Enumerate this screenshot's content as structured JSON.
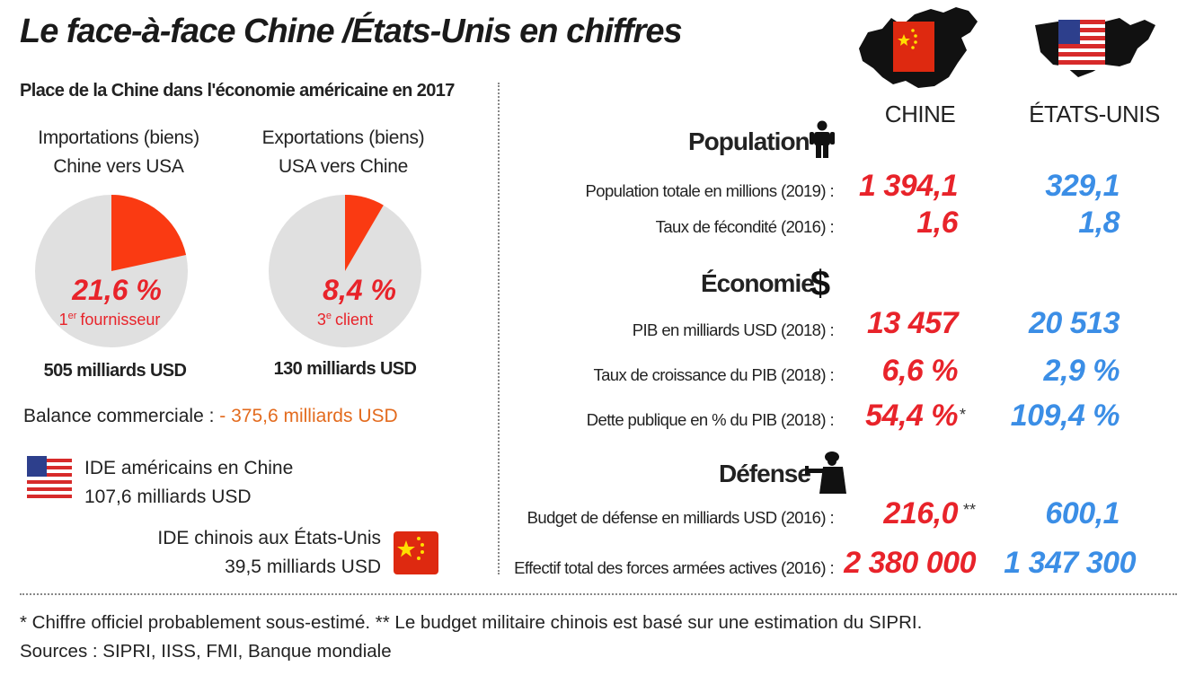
{
  "title": "Le face-à-face Chine /États-Unis en chiffres",
  "left": {
    "subtitle": "Place de la Chine dans l'économie américaine en 2017",
    "import_head_1": "Importations (biens)",
    "import_head_2": "Chine vers USA",
    "export_head_1": "Exportations (biens)",
    "export_head_2": "USA vers Chine",
    "import_pct": "21,6 %",
    "import_rank_num": "1",
    "import_rank_sup": "er",
    "import_rank_text": "fournisseur",
    "export_pct": "8,4 %",
    "export_rank_num": "3",
    "export_rank_sup": "e",
    "export_rank_text": "client",
    "import_total": "505 milliards USD",
    "export_total": "130 milliards USD",
    "balance_label": "Balance commerciale :",
    "balance_value": "- 375,6 milliards USD",
    "ide_us_1": "IDE américains en Chine",
    "ide_us_2": "107,6 milliards USD",
    "ide_cn_1": "IDE chinois aux États-Unis",
    "ide_cn_2": "39,5 milliards USD"
  },
  "right": {
    "col_china": "CHINE",
    "col_usa": "ÉTATS-UNIS",
    "sections": {
      "population": "Population",
      "economie": "Économie",
      "defense": "Défense"
    },
    "rows": [
      {
        "label": "Population totale en millions (2019) :",
        "china": "1 394,1",
        "usa": "329,1",
        "note": ""
      },
      {
        "label": "Taux de fécondité (2016) :",
        "china": "1,6",
        "usa": "1,8",
        "note": ""
      },
      {
        "label": "PIB en milliards USD (2018) :",
        "china": "13 457",
        "usa": "20 513",
        "note": ""
      },
      {
        "label": "Taux de croissance du PIB (2018) :",
        "china": "6,6 %",
        "usa": "2,9 %",
        "note": ""
      },
      {
        "label": "Dette publique en % du PIB (2018) :",
        "china": "54,4 %",
        "usa": "109,4 %",
        "note": "*"
      },
      {
        "label": "Budget de défense en milliards USD (2016) :",
        "china": "216,0",
        "usa": "600,1",
        "note": "**"
      },
      {
        "label": "Effectif total des forces armées actives (2016) :",
        "china": "2 380 000",
        "usa": "1 347 300",
        "note": ""
      }
    ]
  },
  "footnote_1": "* Chiffre officiel probablement sous-estimé.   ** Le budget militaire chinois est basé sur une estimation du SIPRI.",
  "footnote_2": "Sources : SIPRI, IISS, FMI, Banque mondiale",
  "colors": {
    "china_red": "#e8232a",
    "usa_blue": "#3b8ee6",
    "pie_grey": "#e0e0e0",
    "pie_slice": "#fa3a12",
    "balance_orange": "#e36b1e"
  },
  "icons": [
    "china-map-icon",
    "usa-map-icon",
    "person-icon",
    "dollar-icon",
    "soldier-icon",
    "usa-flag-icon",
    "china-flag-icon"
  ],
  "chart_data": [
    {
      "type": "pie",
      "title": "Importations (biens) Chine vers USA",
      "slices": [
        {
          "label": "Chine",
          "value": 21.6
        },
        {
          "label": "",
          "value": 78.4
        }
      ]
    },
    {
      "type": "pie",
      "title": "Exportations (biens) USA vers Chine",
      "slices": [
        {
          "label": "Chine",
          "value": 8.4
        },
        {
          "label": "",
          "value": 91.6
        }
      ]
    }
  ]
}
